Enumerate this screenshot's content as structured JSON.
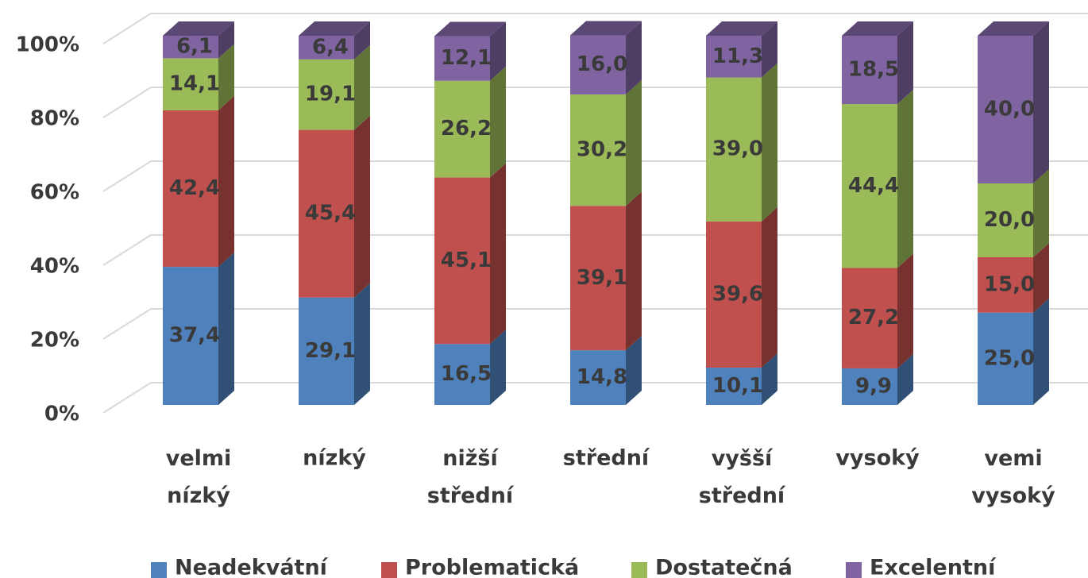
{
  "chart_data": {
    "type": "bar3d_stacked",
    "categories": [
      "velmi nízký",
      "nízký",
      "nižší střední",
      "střední",
      "vyšší střední",
      "vysoký",
      "vemi vysoký"
    ],
    "series": [
      {
        "name": "Neadekvátní",
        "color": "#4f81bd",
        "values": [
          37.4,
          29.1,
          16.5,
          14.8,
          10.1,
          9.9,
          25.0
        ],
        "value_labels": [
          "37,4",
          "29,1",
          "16,5",
          "14,8",
          "10,1",
          "9,9",
          "25,0"
        ]
      },
      {
        "name": "Problematická",
        "color": "#c0504d",
        "values": [
          42.4,
          45.4,
          45.1,
          39.1,
          39.6,
          27.2,
          15.0
        ],
        "value_labels": [
          "42,4",
          "45,4",
          "45,1",
          "39,1",
          "39,6",
          "27,2",
          "15,0"
        ]
      },
      {
        "name": "Dostatečná",
        "color": "#9bbb59",
        "values": [
          14.1,
          19.1,
          26.2,
          30.2,
          39.0,
          44.4,
          20.0
        ],
        "value_labels": [
          "14,1",
          "19,1",
          "26,2",
          "30,2",
          "39,0",
          "44,4",
          "20,0"
        ]
      },
      {
        "name": "Excelentní",
        "color": "#8064a2",
        "values": [
          6.1,
          6.4,
          12.1,
          16.0,
          11.3,
          18.5,
          40.0
        ],
        "value_labels": [
          "6,1",
          "6,4",
          "12,1",
          "16,0",
          "11,3",
          "18,5",
          "40,0"
        ]
      }
    ],
    "ylim": [
      0,
      100
    ],
    "yticks": [
      {
        "value": 0,
        "label": "0%"
      },
      {
        "value": 20,
        "label": "20%"
      },
      {
        "value": 40,
        "label": "40%"
      },
      {
        "value": 60,
        "label": "60%"
      },
      {
        "value": 80,
        "label": "80%"
      },
      {
        "value": 100,
        "label": "100%"
      }
    ],
    "grid": true,
    "legend": "bottom"
  }
}
